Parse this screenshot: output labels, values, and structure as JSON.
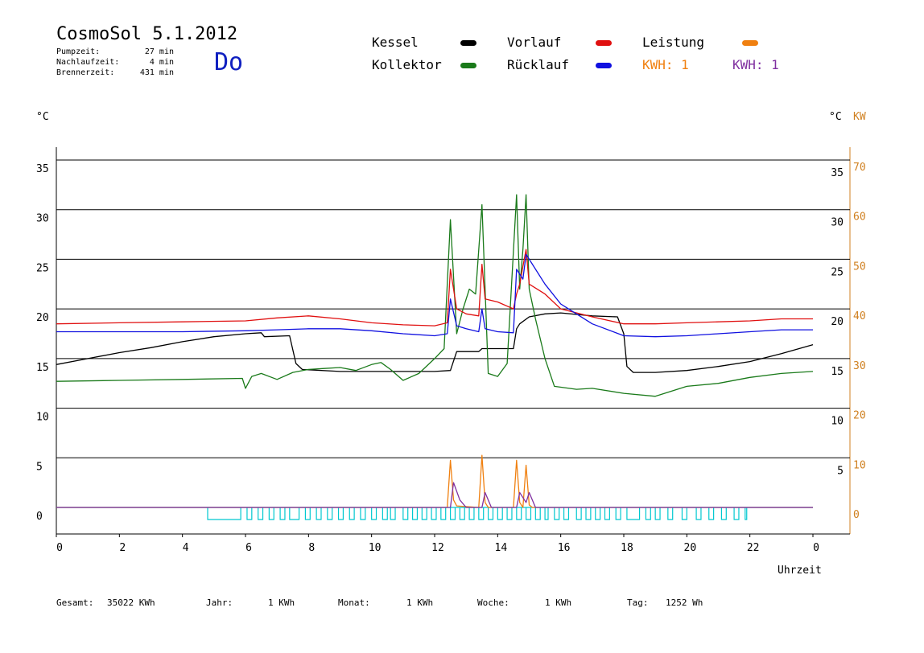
{
  "header": {
    "title": "CosmoSol 5.1.2012",
    "day": "Do",
    "info": [
      {
        "label": "Pumpzeit:",
        "value": "27 min"
      },
      {
        "label": "Nachlaufzeit:",
        "value": "4 min"
      },
      {
        "label": "Brennerzeit:",
        "value": "431 min"
      }
    ]
  },
  "legend": {
    "kessel": {
      "label": "Kessel",
      "color": "#000000"
    },
    "kollektor": {
      "label": "Kollektor",
      "color": "#1a7a1a"
    },
    "vorlauf": {
      "label": "Vorlauf",
      "color": "#e01010"
    },
    "ruecklauf": {
      "label": "Rücklauf",
      "color": "#1010e0"
    },
    "leistung": {
      "label": "Leistung",
      "color": "#f08010"
    },
    "kwh_orange": {
      "label": "KWH: 1",
      "color": "#f08010"
    },
    "kwh_purple": {
      "label": "KWH: 1",
      "color": "#8030a0"
    }
  },
  "axes": {
    "left_unit": "°C",
    "right_unit_c": "°C",
    "right_unit_kw": "KW",
    "x_label": "Uhrzeit"
  },
  "footer": {
    "gesamt_label": "Gesamt:",
    "gesamt_value": "35022 KWh",
    "jahr_label": "Jahr:",
    "jahr_value": "1 KWh",
    "monat_label": "Monat:",
    "monat_value": "1 KWh",
    "woche_label": "Woche:",
    "woche_value": "1 KWh",
    "tag_label": "Tag:",
    "tag_value": "1252 Wh"
  },
  "chart_data": {
    "type": "line",
    "xlabel": "Uhrzeit",
    "ylabel": "°C",
    "ylabel_right": "KW",
    "xlim": [
      0,
      24
    ],
    "ylim": [
      0,
      35
    ],
    "ylim_right": [
      0,
      70
    ],
    "x_ticks": [
      "0",
      "2",
      "4",
      "6",
      "8",
      "10",
      "12",
      "14",
      "16",
      "18",
      "20",
      "22",
      "0"
    ],
    "y_ticks_left": [
      "0",
      "5",
      "10",
      "15",
      "20",
      "25",
      "30",
      "35"
    ],
    "y_ticks_right_c": [
      "5",
      "10",
      "15",
      "20",
      "25",
      "30",
      "35"
    ],
    "y_ticks_right_kw": [
      "0",
      "10",
      "20",
      "30",
      "40",
      "50",
      "60",
      "70"
    ],
    "grid": true,
    "series": [
      {
        "name": "Kessel",
        "color": "#000000",
        "points": [
          [
            0,
            14.4
          ],
          [
            1,
            15.0
          ],
          [
            2,
            15.6
          ],
          [
            3,
            16.1
          ],
          [
            4,
            16.7
          ],
          [
            5,
            17.2
          ],
          [
            6,
            17.5
          ],
          [
            6.5,
            17.6
          ],
          [
            6.6,
            17.2
          ],
          [
            7.4,
            17.3
          ],
          [
            7.6,
            14.5
          ],
          [
            7.8,
            13.9
          ],
          [
            9,
            13.7
          ],
          [
            10,
            13.7
          ],
          [
            11,
            13.7
          ],
          [
            12,
            13.7
          ],
          [
            12.5,
            13.8
          ],
          [
            12.7,
            15.7
          ],
          [
            13.4,
            15.7
          ],
          [
            13.5,
            16.0
          ],
          [
            14.5,
            16.0
          ],
          [
            14.6,
            18.0
          ],
          [
            14.7,
            18.5
          ],
          [
            15.0,
            19.2
          ],
          [
            15.5,
            19.5
          ],
          [
            16.0,
            19.6
          ],
          [
            17.0,
            19.3
          ],
          [
            17.8,
            19.2
          ],
          [
            18.0,
            17.5
          ],
          [
            18.1,
            14.2
          ],
          [
            18.3,
            13.6
          ],
          [
            19,
            13.6
          ],
          [
            20,
            13.8
          ],
          [
            21,
            14.2
          ],
          [
            22,
            14.7
          ],
          [
            23,
            15.5
          ],
          [
            24,
            16.4
          ]
        ]
      },
      {
        "name": "Kollektor",
        "color": "#1a7a1a",
        "points": [
          [
            0,
            12.7
          ],
          [
            2,
            12.8
          ],
          [
            4,
            12.9
          ],
          [
            5.9,
            13.0
          ],
          [
            6.0,
            12.0
          ],
          [
            6.2,
            13.2
          ],
          [
            6.5,
            13.5
          ],
          [
            7.0,
            12.9
          ],
          [
            7.5,
            13.6
          ],
          [
            8.0,
            13.9
          ],
          [
            8.5,
            14.0
          ],
          [
            9.0,
            14.1
          ],
          [
            9.5,
            13.8
          ],
          [
            10.0,
            14.4
          ],
          [
            10.3,
            14.6
          ],
          [
            10.6,
            13.9
          ],
          [
            11.0,
            12.8
          ],
          [
            11.5,
            13.5
          ],
          [
            12.0,
            15.0
          ],
          [
            12.3,
            16.0
          ],
          [
            12.5,
            29.0
          ],
          [
            12.7,
            17.5
          ],
          [
            12.9,
            20.0
          ],
          [
            13.1,
            22.0
          ],
          [
            13.3,
            21.5
          ],
          [
            13.5,
            30.5
          ],
          [
            13.7,
            13.5
          ],
          [
            14.0,
            13.2
          ],
          [
            14.3,
            14.5
          ],
          [
            14.6,
            31.5
          ],
          [
            14.7,
            22.0
          ],
          [
            14.8,
            26.0
          ],
          [
            14.9,
            31.5
          ],
          [
            15.0,
            22.0
          ],
          [
            15.2,
            19.0
          ],
          [
            15.5,
            15.0
          ],
          [
            15.8,
            12.2
          ],
          [
            16.5,
            11.9
          ],
          [
            17.0,
            12.0
          ],
          [
            18.0,
            11.5
          ],
          [
            19.0,
            11.2
          ],
          [
            20.0,
            12.2
          ],
          [
            21.0,
            12.5
          ],
          [
            22.0,
            13.1
          ],
          [
            23.0,
            13.5
          ],
          [
            24.0,
            13.7
          ]
        ]
      },
      {
        "name": "Vorlauf",
        "color": "#e01010",
        "points": [
          [
            0,
            18.5
          ],
          [
            2,
            18.6
          ],
          [
            4,
            18.7
          ],
          [
            6,
            18.8
          ],
          [
            7,
            19.1
          ],
          [
            8,
            19.3
          ],
          [
            9,
            19.0
          ],
          [
            10,
            18.6
          ],
          [
            11,
            18.4
          ],
          [
            12,
            18.3
          ],
          [
            12.4,
            18.6
          ],
          [
            12.5,
            24.0
          ],
          [
            12.7,
            20.0
          ],
          [
            13.0,
            19.5
          ],
          [
            13.4,
            19.3
          ],
          [
            13.5,
            24.5
          ],
          [
            13.6,
            21.0
          ],
          [
            14.0,
            20.7
          ],
          [
            14.5,
            20.0
          ],
          [
            14.6,
            21.5
          ],
          [
            14.7,
            22.5
          ],
          [
            14.9,
            26.0
          ],
          [
            15.0,
            22.5
          ],
          [
            15.5,
            21.5
          ],
          [
            16.0,
            20.0
          ],
          [
            17.0,
            19.2
          ],
          [
            18.0,
            18.5
          ],
          [
            19.0,
            18.5
          ],
          [
            20.0,
            18.6
          ],
          [
            21.0,
            18.7
          ],
          [
            22.0,
            18.8
          ],
          [
            23.0,
            19.0
          ],
          [
            24.0,
            19.0
          ]
        ]
      },
      {
        "name": "Rücklauf",
        "color": "#1010e0",
        "points": [
          [
            0,
            17.7
          ],
          [
            2,
            17.7
          ],
          [
            4,
            17.7
          ],
          [
            6,
            17.8
          ],
          [
            7,
            17.9
          ],
          [
            8,
            18.0
          ],
          [
            9,
            18.0
          ],
          [
            10,
            17.8
          ],
          [
            11,
            17.5
          ],
          [
            12,
            17.3
          ],
          [
            12.4,
            17.5
          ],
          [
            12.5,
            21.0
          ],
          [
            12.7,
            18.3
          ],
          [
            13.0,
            18.0
          ],
          [
            13.4,
            17.7
          ],
          [
            13.5,
            20.0
          ],
          [
            13.6,
            18.0
          ],
          [
            14.0,
            17.7
          ],
          [
            14.5,
            17.6
          ],
          [
            14.6,
            24.0
          ],
          [
            14.8,
            23.0
          ],
          [
            14.9,
            25.5
          ],
          [
            15.0,
            25.0
          ],
          [
            15.5,
            22.5
          ],
          [
            16.0,
            20.5
          ],
          [
            17.0,
            18.5
          ],
          [
            18.0,
            17.3
          ],
          [
            19.0,
            17.2
          ],
          [
            20.0,
            17.3
          ],
          [
            21.0,
            17.5
          ],
          [
            22.0,
            17.7
          ],
          [
            23.0,
            17.9
          ],
          [
            24.0,
            17.9
          ]
        ]
      },
      {
        "name": "Leistung",
        "color": "#f08010",
        "axis": "right",
        "points": [
          [
            0,
            0
          ],
          [
            12.4,
            0
          ],
          [
            12.5,
            9.5
          ],
          [
            12.6,
            1.5
          ],
          [
            12.7,
            0.3
          ],
          [
            13.4,
            0
          ],
          [
            13.5,
            10.5
          ],
          [
            13.6,
            1.0
          ],
          [
            13.7,
            0
          ],
          [
            14.5,
            0
          ],
          [
            14.6,
            9.5
          ],
          [
            14.7,
            1.0
          ],
          [
            14.8,
            0
          ],
          [
            14.9,
            8.5
          ],
          [
            15.0,
            0.5
          ],
          [
            15.1,
            0
          ],
          [
            24,
            0
          ]
        ]
      },
      {
        "name": "KWH",
        "color": "#8030a0",
        "axis": "right",
        "points": [
          [
            0,
            0
          ],
          [
            12.5,
            0
          ],
          [
            12.6,
            5.0
          ],
          [
            12.8,
            1.5
          ],
          [
            13.0,
            0
          ],
          [
            13.5,
            0
          ],
          [
            13.6,
            3.0
          ],
          [
            13.8,
            0
          ],
          [
            14.6,
            0
          ],
          [
            14.7,
            3.0
          ],
          [
            14.9,
            1.0
          ],
          [
            15.0,
            3.0
          ],
          [
            15.2,
            0
          ],
          [
            24,
            0
          ]
        ]
      }
    ],
    "pump_pulses": {
      "color": "#00c8d0",
      "intervals": [
        [
          4.8,
          5.85
        ],
        [
          6.05,
          6.2
        ],
        [
          6.4,
          6.55
        ],
        [
          6.75,
          6.9
        ],
        [
          7.1,
          7.25
        ],
        [
          7.4,
          7.7
        ],
        [
          7.9,
          8.05
        ],
        [
          8.25,
          8.4
        ],
        [
          8.6,
          8.75
        ],
        [
          8.95,
          9.1
        ],
        [
          9.3,
          9.45
        ],
        [
          9.65,
          9.8
        ],
        [
          10.0,
          10.15
        ],
        [
          10.35,
          10.5
        ],
        [
          10.6,
          10.75
        ],
        [
          11.0,
          11.15
        ],
        [
          11.3,
          11.45
        ],
        [
          11.6,
          11.75
        ],
        [
          11.9,
          12.05
        ],
        [
          12.2,
          12.35
        ],
        [
          12.5,
          12.65
        ],
        [
          12.8,
          12.95
        ],
        [
          13.1,
          13.25
        ],
        [
          13.4,
          13.55
        ],
        [
          13.7,
          13.85
        ],
        [
          14.0,
          14.15
        ],
        [
          14.3,
          14.45
        ],
        [
          14.6,
          14.75
        ],
        [
          14.9,
          15.05
        ],
        [
          15.2,
          15.35
        ],
        [
          15.5,
          15.6
        ],
        [
          15.8,
          15.95
        ],
        [
          16.1,
          16.25
        ],
        [
          16.5,
          16.65
        ],
        [
          16.8,
          16.95
        ],
        [
          17.1,
          17.25
        ],
        [
          17.4,
          17.55
        ],
        [
          17.75,
          17.9
        ],
        [
          18.1,
          18.5
        ],
        [
          18.7,
          18.85
        ],
        [
          19.0,
          19.15
        ],
        [
          19.4,
          19.55
        ],
        [
          19.85,
          20.0
        ],
        [
          20.3,
          20.45
        ],
        [
          20.7,
          20.85
        ],
        [
          21.1,
          21.25
        ],
        [
          21.5,
          21.65
        ],
        [
          21.85,
          21.9
        ]
      ]
    }
  }
}
